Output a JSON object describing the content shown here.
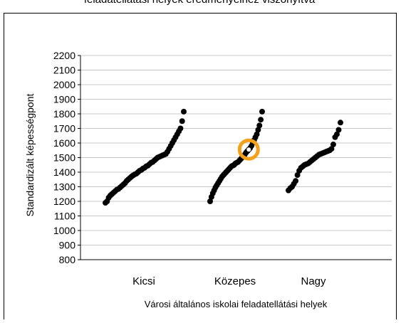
{
  "chart_data": {
    "type": "strip",
    "title": "feladatellátási helyek eredményeihez viszonyítva",
    "y_label": "Standardizált képességpont",
    "x_label": "Városi általános iskolai feladatellátási helyek",
    "categories": [
      "Kicsi",
      "Közepes",
      "Nagy"
    ],
    "color": "#000000",
    "series": [
      {
        "values": [
          1190,
          1200,
          1225,
          1240,
          1250,
          1260,
          1270,
          1280,
          1285,
          1295,
          1305,
          1315,
          1325,
          1340,
          1350,
          1360,
          1370,
          1378,
          1385,
          1390,
          1400,
          1410,
          1415,
          1425,
          1430,
          1440,
          1445,
          1455,
          1465,
          1470,
          1480,
          1490,
          1500,
          1505,
          1510,
          1515,
          1520,
          1525,
          1540,
          1560,
          1580,
          1600,
          1620,
          1640,
          1660,
          1680,
          1700,
          1750,
          1815
        ]
      },
      {
        "values": [
          1200,
          1230,
          1255,
          1275,
          1295,
          1310,
          1325,
          1340,
          1355,
          1370,
          1380,
          1390,
          1400,
          1410,
          1420,
          1430,
          1440,
          1445,
          1450,
          1460,
          1465,
          1470,
          1480,
          1490,
          1500,
          1510,
          1520,
          1535,
          1545,
          1555,
          1565,
          1580,
          1600,
          1620,
          1640,
          1660,
          1690,
          1720,
          1760,
          1815
        ]
      },
      {
        "values": [
          1275,
          1290,
          1300,
          1320,
          1340,
          1380,
          1410,
          1430,
          1440,
          1450,
          1455,
          1460,
          1470,
          1480,
          1490,
          1500,
          1510,
          1520,
          1525,
          1530,
          1535,
          1540,
          1545,
          1550,
          1560,
          1590,
          1640,
          1660,
          1690,
          1740
        ]
      }
    ],
    "highlight": {
      "series": 1,
      "value": 1555,
      "color": "#f5a01a"
    },
    "ylim": [
      800,
      2200
    ],
    "yticks": [
      800,
      900,
      1000,
      1100,
      1200,
      1300,
      1400,
      1500,
      1600,
      1700,
      1800,
      1900,
      2000,
      2100,
      2200
    ],
    "grid": true
  }
}
